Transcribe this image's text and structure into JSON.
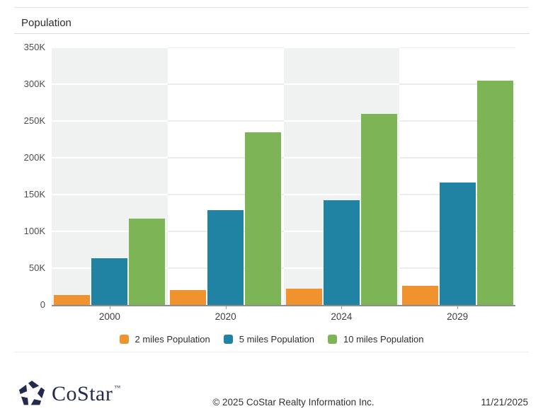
{
  "header": {
    "title": "Population"
  },
  "chart_data": {
    "type": "bar",
    "title": "Population",
    "xlabel": "",
    "ylabel": "",
    "categories": [
      "2000",
      "2020",
      "2024",
      "2029"
    ],
    "series": [
      {
        "name": "2 miles Population",
        "color": "#F0922D",
        "values": [
          13500,
          20000,
          22000,
          26000
        ]
      },
      {
        "name": "5 miles Population",
        "color": "#2183A3",
        "values": [
          63000,
          129000,
          142000,
          166000
        ]
      },
      {
        "name": "10 miles Population",
        "color": "#7DB556",
        "values": [
          117000,
          235000,
          260000,
          305000
        ]
      }
    ],
    "ylim": [
      0,
      350000
    ],
    "ytick_step": 50000,
    "ytick_labels": [
      "0",
      "50K",
      "100K",
      "150K",
      "200K",
      "250K",
      "300K",
      "350K"
    ],
    "grid": true,
    "band_colors": [
      "#f0f1f1",
      "#ffffff"
    ],
    "gridline_on_gray": "#ffffff",
    "gridline_on_white": "#ebebeb",
    "legend_position": "bottom"
  },
  "icons": {
    "logo": "costar-pinwheel-star"
  },
  "footer": {
    "logo_text": "CoStar",
    "trademark": "™",
    "logo_color": "#222b4e",
    "copyright": "© 2025 CoStar Realty Information Inc.",
    "date": "11/21/2025"
  }
}
